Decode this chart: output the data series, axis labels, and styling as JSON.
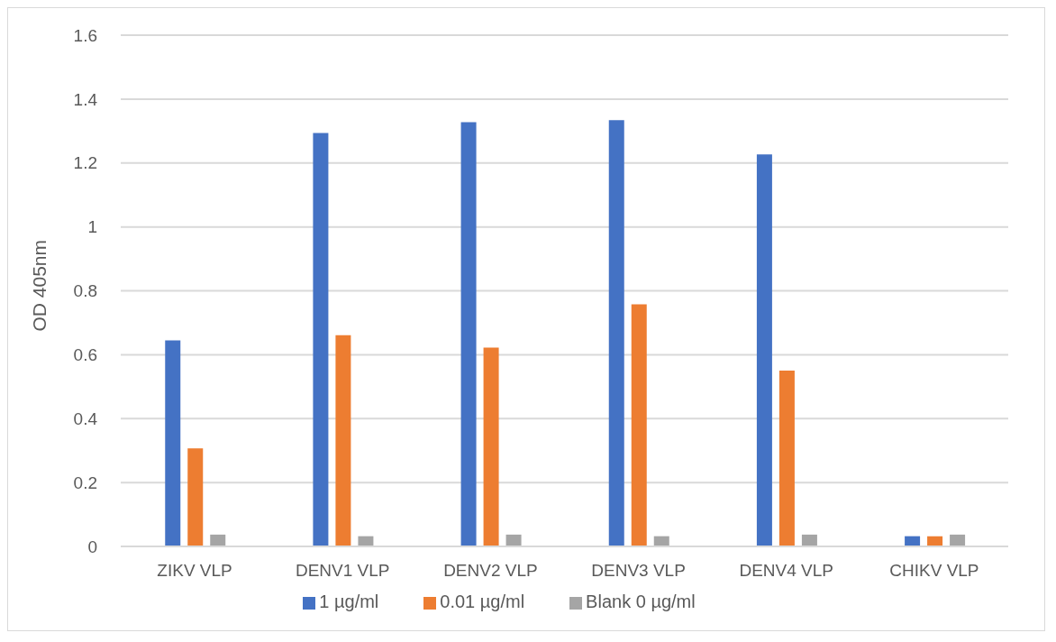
{
  "chart_data": {
    "type": "bar",
    "ylabel": "OD 405nm",
    "categories": [
      "ZIKV VLP",
      "DENV1 VLP",
      "DENV2 VLP",
      "DENV3 VLP",
      "DENV4 VLP",
      "CHIKV VLP"
    ],
    "series": [
      {
        "name": "1 µg/ml",
        "color": "#4472c4",
        "values": [
          0.645,
          1.294,
          1.328,
          1.334,
          1.227,
          0.032
        ]
      },
      {
        "name": "0.01 µg/ml",
        "color": "#ed7d31",
        "values": [
          0.307,
          0.661,
          0.622,
          0.758,
          0.55,
          0.032
        ]
      },
      {
        "name": "Blank 0 µg/ml",
        "color": "#a5a5a5",
        "values": [
          0.037,
          0.032,
          0.037,
          0.032,
          0.037,
          0.037
        ]
      }
    ],
    "ylim": [
      0,
      1.6
    ],
    "yticks": [
      0,
      0.2,
      0.4,
      0.6,
      0.8,
      1,
      1.2,
      1.4,
      1.6
    ],
    "grid": "y",
    "legend": "bottom"
  }
}
